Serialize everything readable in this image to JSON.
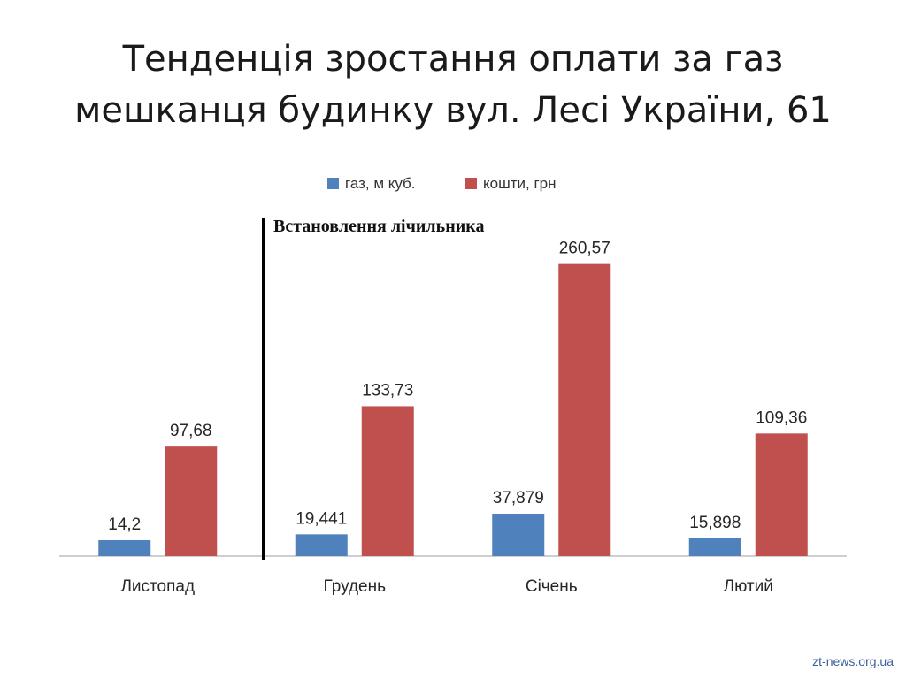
{
  "slide": {
    "title_line1": "Тенденція зростання оплати за газ",
    "title_line2": "мешканця будинку вул. Лесі України, 61"
  },
  "annotation": {
    "text": "Встановлення лічильника"
  },
  "watermark": "zt-news.org.ua",
  "colors": {
    "gas": "#4F81BD",
    "cost": "#C0504D",
    "marker_line": "#000000",
    "axis": "#bfbfbf"
  },
  "chart_data": {
    "type": "bar",
    "categories": [
      "Листопад",
      "Грудень",
      "Січень",
      "Лютий"
    ],
    "series": [
      {
        "name": "газ, м куб.",
        "values": [
          14.2,
          19.441,
          37.879,
          15.898
        ],
        "labels": [
          "14,2",
          "19,441",
          "37,879",
          "15,898"
        ],
        "color": "#4F81BD"
      },
      {
        "name": "кошти, грн",
        "values": [
          97.68,
          133.73,
          260.57,
          109.36
        ],
        "labels": [
          "97,68",
          "133,73",
          "260,57",
          "109,36"
        ],
        "color": "#C0504D"
      }
    ],
    "ylim": [
      0,
      280
    ],
    "legend_position": "top",
    "grid": false,
    "annotation": "Встановлення лічильника"
  }
}
